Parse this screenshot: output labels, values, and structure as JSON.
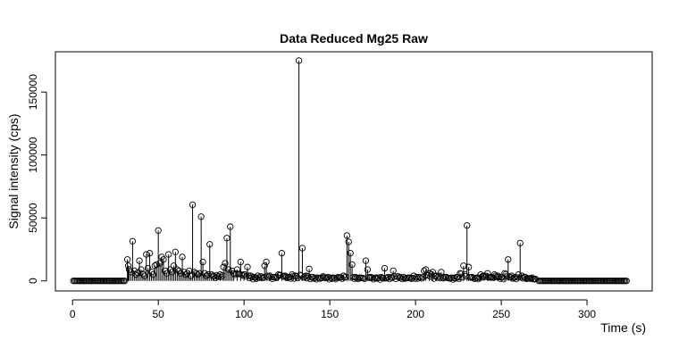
{
  "chart_data": {
    "type": "scatter",
    "title": "Data Reduced Mg25 Raw",
    "xlabel": "Time (s)",
    "ylabel": "Signal intensity (cps)",
    "xlim": [
      -10,
      338
    ],
    "ylim": [
      -8000,
      182000
    ],
    "xticks": [
      0,
      50,
      100,
      150,
      200,
      250,
      300
    ],
    "yticks": [
      0,
      50000,
      100000,
      150000
    ],
    "xtick_labels": [
      "0",
      "50",
      "100",
      "150",
      "200",
      "250",
      "300"
    ],
    "ytick_labels": [
      "0",
      "50000",
      "100000",
      "150000"
    ],
    "grid": false,
    "legend": "none",
    "marker": "open-circle",
    "line_style": "vertical-lines-from-zero",
    "colors": {
      "marker": "#000000",
      "axis": "#000000",
      "background": "#ffffff"
    },
    "series": [
      {
        "baseline_segments": [
          {
            "x_start": 0.5,
            "x_end": 31,
            "y": 0
          },
          {
            "x_start": 272,
            "x_end": 323,
            "y": 0
          }
        ],
        "points": [
          {
            "x": 32,
            "y": 17000
          },
          {
            "x": 32.5,
            "y": 12000
          },
          {
            "x": 33,
            "y": 9000
          },
          {
            "x": 34,
            "y": 7000
          },
          {
            "x": 35,
            "y": 31500
          },
          {
            "x": 36,
            "y": 8000
          },
          {
            "x": 37,
            "y": 5000
          },
          {
            "x": 38,
            "y": 6500
          },
          {
            "x": 39,
            "y": 16000
          },
          {
            "x": 40,
            "y": 9000
          },
          {
            "x": 41,
            "y": 5500
          },
          {
            "x": 42,
            "y": 4000
          },
          {
            "x": 43,
            "y": 21000
          },
          {
            "x": 44,
            "y": 10000
          },
          {
            "x": 45,
            "y": 22000
          },
          {
            "x": 46,
            "y": 7000
          },
          {
            "x": 47,
            "y": 5000
          },
          {
            "x": 48,
            "y": 12000
          },
          {
            "x": 49,
            "y": 13000
          },
          {
            "x": 50,
            "y": 40000
          },
          {
            "x": 51,
            "y": 14000
          },
          {
            "x": 52,
            "y": 19000
          },
          {
            "x": 53,
            "y": 17000
          },
          {
            "x": 54,
            "y": 8000
          },
          {
            "x": 55,
            "y": 6000
          },
          {
            "x": 56,
            "y": 21000
          },
          {
            "x": 57,
            "y": 9000
          },
          {
            "x": 58,
            "y": 7000
          },
          {
            "x": 59,
            "y": 12000
          },
          {
            "x": 60,
            "y": 23000
          },
          {
            "x": 61,
            "y": 9000
          },
          {
            "x": 62,
            "y": 8000
          },
          {
            "x": 63,
            "y": 6000
          },
          {
            "x": 64,
            "y": 19000
          },
          {
            "x": 65,
            "y": 7000
          },
          {
            "x": 66,
            "y": 5000
          },
          {
            "x": 67,
            "y": 6000
          },
          {
            "x": 68,
            "y": 8000
          },
          {
            "x": 69,
            "y": 4000
          },
          {
            "x": 70,
            "y": 60500
          },
          {
            "x": 71,
            "y": 7000
          },
          {
            "x": 72,
            "y": 6000
          },
          {
            "x": 73,
            "y": 5000
          },
          {
            "x": 74,
            "y": 6000
          },
          {
            "x": 75,
            "y": 51000
          },
          {
            "x": 76,
            "y": 15000
          },
          {
            "x": 77,
            "y": 6000
          },
          {
            "x": 78,
            "y": 4000
          },
          {
            "x": 79,
            "y": 5000
          },
          {
            "x": 80,
            "y": 29000
          },
          {
            "x": 81,
            "y": 5000
          },
          {
            "x": 82,
            "y": 4000
          },
          {
            "x": 84,
            "y": 4500
          },
          {
            "x": 86,
            "y": 5000
          },
          {
            "x": 88,
            "y": 11000
          },
          {
            "x": 89,
            "y": 14000
          },
          {
            "x": 90,
            "y": 34000
          },
          {
            "x": 91,
            "y": 9000
          },
          {
            "x": 92,
            "y": 43000
          },
          {
            "x": 93,
            "y": 8000
          },
          {
            "x": 94,
            "y": 6000
          },
          {
            "x": 96,
            "y": 9000
          },
          {
            "x": 98,
            "y": 15000
          },
          {
            "x": 100,
            "y": 5000
          },
          {
            "x": 102,
            "y": 11000
          },
          {
            "x": 104,
            "y": 4000
          },
          {
            "x": 106,
            "y": 3000
          },
          {
            "x": 108,
            "y": 4000
          },
          {
            "x": 110,
            "y": 3500
          },
          {
            "x": 112,
            "y": 12000
          },
          {
            "x": 113,
            "y": 15000
          },
          {
            "x": 115,
            "y": 4000
          },
          {
            "x": 118,
            "y": 3000
          },
          {
            "x": 120,
            "y": 5000
          },
          {
            "x": 122,
            "y": 22000
          },
          {
            "x": 124,
            "y": 4000
          },
          {
            "x": 126,
            "y": 3000
          },
          {
            "x": 128,
            "y": 5000
          },
          {
            "x": 130,
            "y": 4000
          },
          {
            "x": 132,
            "y": 175000
          },
          {
            "x": 134,
            "y": 26000
          },
          {
            "x": 136,
            "y": 4000
          },
          {
            "x": 138,
            "y": 9500
          },
          {
            "x": 140,
            "y": 3000
          },
          {
            "x": 143,
            "y": 2500
          },
          {
            "x": 146,
            "y": 3500
          },
          {
            "x": 149,
            "y": 3000
          },
          {
            "x": 152,
            "y": 2500
          },
          {
            "x": 155,
            "y": 3000
          },
          {
            "x": 158,
            "y": 4000
          },
          {
            "x": 160,
            "y": 36000
          },
          {
            "x": 161,
            "y": 31000
          },
          {
            "x": 162,
            "y": 22000
          },
          {
            "x": 163,
            "y": 13000
          },
          {
            "x": 165,
            "y": 3000
          },
          {
            "x": 168,
            "y": 2500
          },
          {
            "x": 171,
            "y": 16000
          },
          {
            "x": 172,
            "y": 9000
          },
          {
            "x": 174,
            "y": 3000
          },
          {
            "x": 177,
            "y": 2500
          },
          {
            "x": 180,
            "y": 3000
          },
          {
            "x": 182,
            "y": 10000
          },
          {
            "x": 184,
            "y": 3000
          },
          {
            "x": 187,
            "y": 8000
          },
          {
            "x": 190,
            "y": 3500
          },
          {
            "x": 193,
            "y": 3000
          },
          {
            "x": 196,
            "y": 2500
          },
          {
            "x": 199,
            "y": 4000
          },
          {
            "x": 202,
            "y": 3000
          },
          {
            "x": 205,
            "y": 8000
          },
          {
            "x": 206,
            "y": 9000
          },
          {
            "x": 208,
            "y": 6000
          },
          {
            "x": 210,
            "y": 7000
          },
          {
            "x": 212,
            "y": 4000
          },
          {
            "x": 215,
            "y": 7000
          },
          {
            "x": 218,
            "y": 3000
          },
          {
            "x": 221,
            "y": 2500
          },
          {
            "x": 224,
            "y": 3000
          },
          {
            "x": 226,
            "y": 6000
          },
          {
            "x": 228,
            "y": 12000
          },
          {
            "x": 230,
            "y": 44000
          },
          {
            "x": 231,
            "y": 11000
          },
          {
            "x": 233,
            "y": 3000
          },
          {
            "x": 236,
            "y": 2500
          },
          {
            "x": 238,
            "y": 5000
          },
          {
            "x": 240,
            "y": 4000
          },
          {
            "x": 242,
            "y": 6000
          },
          {
            "x": 244,
            "y": 3000
          },
          {
            "x": 246,
            "y": 5000
          },
          {
            "x": 248,
            "y": 4000
          },
          {
            "x": 250,
            "y": 3000
          },
          {
            "x": 252,
            "y": 6000
          },
          {
            "x": 254,
            "y": 17000
          },
          {
            "x": 256,
            "y": 4000
          },
          {
            "x": 258,
            "y": 3000
          },
          {
            "x": 260,
            "y": 5000
          },
          {
            "x": 261,
            "y": 30000
          },
          {
            "x": 262,
            "y": 4000
          },
          {
            "x": 264,
            "y": 3000
          },
          {
            "x": 266,
            "y": 2000
          },
          {
            "x": 268,
            "y": 2500
          },
          {
            "x": 270,
            "y": 1500
          }
        ]
      }
    ]
  }
}
